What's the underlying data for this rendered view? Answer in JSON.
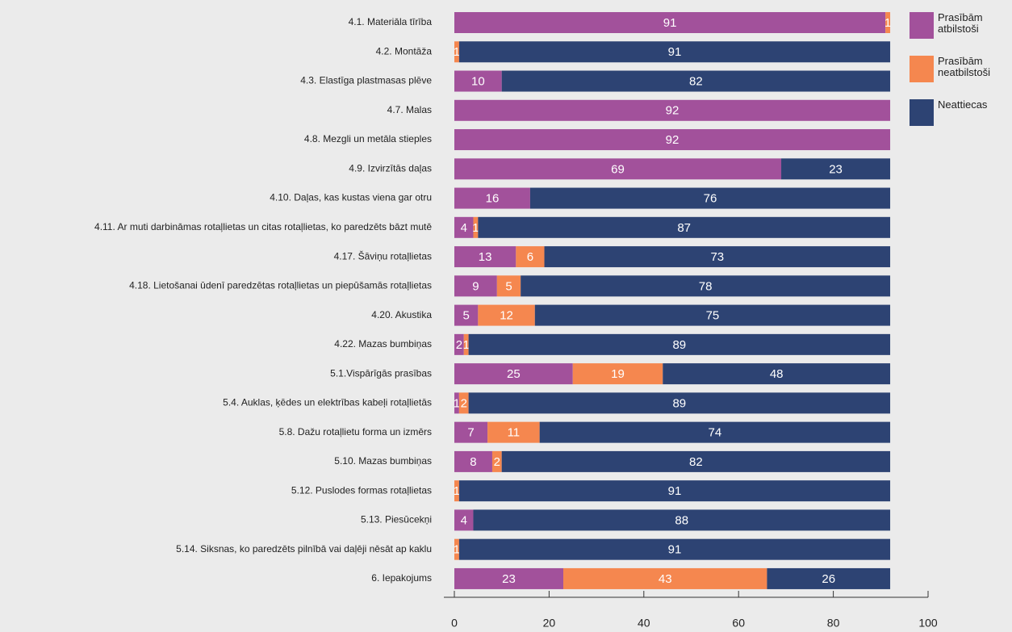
{
  "chart_data": {
    "type": "stacked_barh",
    "categories": [
      "4.1. Materiāla tīrība",
      "4.2. Montāža",
      "4.3. Elastīga plastmasas plēve",
      "4.7. Malas",
      "4.8. Mezgli un metāla stieples",
      "4.9. Izvirzītās daļas",
      "4.10. Daļas, kas kustas viena gar otru",
      "4.11. Ar muti darbināmas rotaļlietas un citas rotaļlietas, ko paredzēts bāzt mutē",
      "4.17. Šāviņu rotaļlietas",
      "4.18. Lietošanai ūdenī paredzētas rotaļlietas un piepūšamās rotaļlietas",
      "4.20. Akustika",
      "4.22. Mazas bumbiņas",
      "5.1.Vispārīgās prasības",
      "5.4. Auklas, ķēdes un elektrības kabeļi rotaļlietās",
      "5.8. Dažu rotaļlietu forma un izmērs",
      "5.10. Mazas bumbiņas",
      "5.12. Puslodes formas rotaļlietas",
      "5.13. Piesūcekņi",
      "5.14. Siksnas, ko paredzēts pilnībā vai daļēji nēsāt ap kaklu",
      "6. Iepakojums"
    ],
    "series": [
      {
        "name": "Prasībām atbilstoši",
        "color": "#a2519b",
        "values": [
          91,
          0,
          10,
          92,
          92,
          69,
          16,
          4,
          13,
          9,
          5,
          2,
          25,
          1,
          7,
          8,
          0,
          4,
          0,
          23
        ]
      },
      {
        "name": "Prasībām neatbilstoši",
        "color": "#f5874f",
        "values": [
          1,
          1,
          0,
          0,
          0,
          0,
          0,
          1,
          6,
          5,
          12,
          1,
          19,
          2,
          11,
          2,
          1,
          0,
          1,
          43
        ]
      },
      {
        "name": "Neattiecas",
        "color": "#2d4373",
        "values": [
          0,
          91,
          82,
          0,
          0,
          23,
          76,
          87,
          73,
          78,
          75,
          89,
          48,
          89,
          74,
          82,
          91,
          88,
          91,
          26
        ]
      }
    ],
    "xlim": [
      0,
      100
    ],
    "xticks": [
      0,
      20,
      40,
      60,
      80,
      100
    ],
    "legend": "right"
  }
}
